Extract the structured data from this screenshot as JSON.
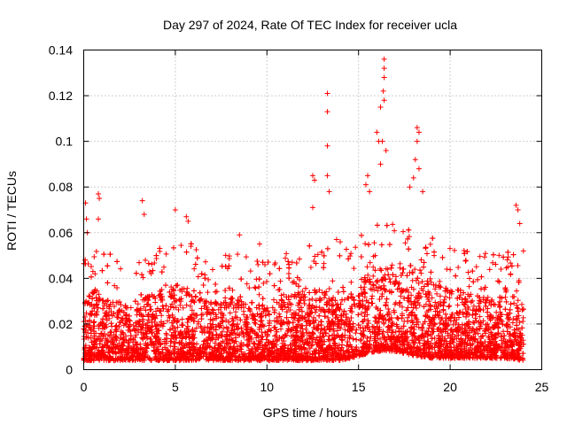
{
  "chart_data": {
    "type": "scatter",
    "title": "Day 297 of 2024, Rate Of TEC Index for receiver ucla",
    "xlabel": "GPS time / hours",
    "ylabel": "ROTI / TECUs",
    "xlim": [
      0,
      25
    ],
    "ylim": [
      0,
      0.14
    ],
    "x_ticks": [
      0,
      5,
      10,
      15,
      20,
      25
    ],
    "x_tick_labels": [
      "0",
      "5",
      "10",
      "15",
      "20",
      "25"
    ],
    "y_ticks": [
      0,
      0.02,
      0.04,
      0.06,
      0.08,
      0.1,
      0.12,
      0.14
    ],
    "y_tick_labels": [
      "0",
      "0.02",
      "0.04",
      "0.06",
      "0.08",
      "0.1",
      "0.12",
      "0.14"
    ],
    "grid": true,
    "marker": "+",
    "color": "#ff0000",
    "series": [
      {
        "name": "ROTI",
        "envelope": {
          "x": [
            0,
            0.5,
            1,
            2,
            3,
            4,
            5,
            6,
            7,
            8,
            9,
            10,
            11,
            12,
            13,
            14,
            15,
            16,
            17,
            18,
            19,
            20,
            21,
            22,
            23,
            24
          ],
          "typical_max": [
            0.03,
            0.035,
            0.032,
            0.03,
            0.03,
            0.035,
            0.038,
            0.035,
            0.03,
            0.032,
            0.03,
            0.028,
            0.032,
            0.035,
            0.035,
            0.03,
            0.04,
            0.045,
            0.045,
            0.045,
            0.04,
            0.035,
            0.035,
            0.032,
            0.032,
            0.032
          ],
          "typical_min": [
            0.004,
            0.004,
            0.004,
            0.004,
            0.004,
            0.004,
            0.004,
            0.004,
            0.004,
            0.004,
            0.004,
            0.004,
            0.004,
            0.004,
            0.004,
            0.004,
            0.006,
            0.008,
            0.008,
            0.006,
            0.005,
            0.005,
            0.005,
            0.005,
            0.005,
            0.004
          ]
        },
        "notable_points": [
          {
            "x": 0.1,
            "y": 0.073
          },
          {
            "x": 0.15,
            "y": 0.066
          },
          {
            "x": 0.2,
            "y": 0.06
          },
          {
            "x": 0.8,
            "y": 0.077
          },
          {
            "x": 0.85,
            "y": 0.075
          },
          {
            "x": 0.8,
            "y": 0.066
          },
          {
            "x": 3.2,
            "y": 0.074
          },
          {
            "x": 3.3,
            "y": 0.068
          },
          {
            "x": 5.0,
            "y": 0.07
          },
          {
            "x": 5.6,
            "y": 0.067
          },
          {
            "x": 5.7,
            "y": 0.065
          },
          {
            "x": 8.5,
            "y": 0.059
          },
          {
            "x": 9.6,
            "y": 0.055
          },
          {
            "x": 12.5,
            "y": 0.085
          },
          {
            "x": 12.6,
            "y": 0.083
          },
          {
            "x": 12.5,
            "y": 0.071
          },
          {
            "x": 13.3,
            "y": 0.121
          },
          {
            "x": 13.3,
            "y": 0.113
          },
          {
            "x": 13.3,
            "y": 0.098
          },
          {
            "x": 13.3,
            "y": 0.085
          },
          {
            "x": 13.4,
            "y": 0.078
          },
          {
            "x": 13.8,
            "y": 0.057
          },
          {
            "x": 14.0,
            "y": 0.056
          },
          {
            "x": 15.4,
            "y": 0.081
          },
          {
            "x": 15.5,
            "y": 0.085
          },
          {
            "x": 15.6,
            "y": 0.078
          },
          {
            "x": 16.0,
            "y": 0.104
          },
          {
            "x": 16.1,
            "y": 0.1
          },
          {
            "x": 16.2,
            "y": 0.09
          },
          {
            "x": 16.4,
            "y": 0.136
          },
          {
            "x": 16.4,
            "y": 0.132
          },
          {
            "x": 16.4,
            "y": 0.128
          },
          {
            "x": 16.35,
            "y": 0.122
          },
          {
            "x": 16.4,
            "y": 0.118
          },
          {
            "x": 16.2,
            "y": 0.115
          },
          {
            "x": 16.3,
            "y": 0.1
          },
          {
            "x": 16.5,
            "y": 0.096
          },
          {
            "x": 18.2,
            "y": 0.106
          },
          {
            "x": 18.3,
            "y": 0.104
          },
          {
            "x": 18.2,
            "y": 0.1
          },
          {
            "x": 18.1,
            "y": 0.092
          },
          {
            "x": 18.3,
            "y": 0.088
          },
          {
            "x": 18.0,
            "y": 0.084
          },
          {
            "x": 17.8,
            "y": 0.08
          },
          {
            "x": 18.5,
            "y": 0.078
          },
          {
            "x": 23.6,
            "y": 0.072
          },
          {
            "x": 23.7,
            "y": 0.07
          },
          {
            "x": 23.8,
            "y": 0.064
          },
          {
            "x": 24.0,
            "y": 0.052
          }
        ]
      }
    ]
  }
}
